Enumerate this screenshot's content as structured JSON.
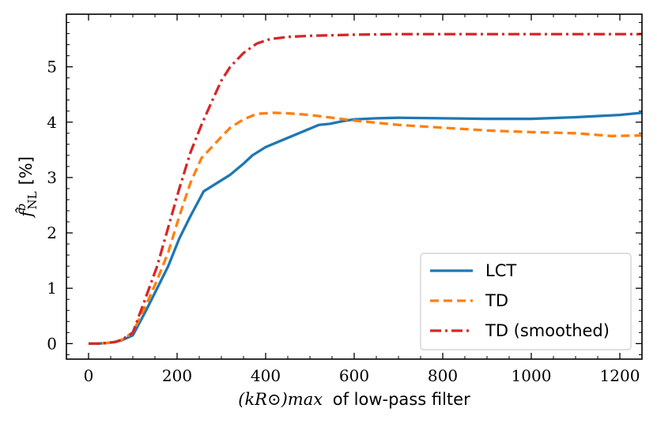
{
  "chart_data": {
    "type": "line",
    "title": "",
    "xlabel": "(kR⊙)max of low-pass filter",
    "xlabel_math": "(kR⊙)max",
    "xlabel_text": "of low-pass filter",
    "ylabel": "f̂ᵇNL [%]",
    "ylabel_math": "f̂",
    "ylabel_sup": "b",
    "ylabel_sub": "NL",
    "ylabel_unit": "[%]",
    "xlim": [
      -50,
      1250
    ],
    "ylim": [
      -0.28,
      5.95
    ],
    "xticks": [
      0,
      200,
      400,
      600,
      800,
      1000,
      1200
    ],
    "xtick_labels": [
      "0",
      "200",
      "400",
      "600",
      "800",
      "1000",
      "1200"
    ],
    "yticks": [
      0,
      1,
      2,
      3,
      4,
      5
    ],
    "ytick_labels": [
      "0",
      "1",
      "2",
      "3",
      "4",
      "5"
    ],
    "legend_position": "bottom-right",
    "series": [
      {
        "name": "LCT",
        "color": "#1f77b4",
        "style": "solid",
        "x": [
          0,
          20,
          40,
          60,
          75,
          100,
          130,
          155,
          180,
          205,
          230,
          260,
          290,
          320,
          350,
          370,
          400,
          430,
          460,
          490,
          520,
          545,
          575,
          600,
          650,
          700,
          800,
          900,
          1000,
          1100,
          1200,
          1250
        ],
        "y": [
          0,
          0,
          0.01,
          0.03,
          0.06,
          0.15,
          0.6,
          1.0,
          1.4,
          1.9,
          2.3,
          2.75,
          2.9,
          3.05,
          3.25,
          3.4,
          3.55,
          3.65,
          3.75,
          3.85,
          3.95,
          3.97,
          4.02,
          4.05,
          4.07,
          4.08,
          4.07,
          4.06,
          4.06,
          4.09,
          4.13,
          4.17
        ]
      },
      {
        "name": "TD",
        "color": "#ff7f0e",
        "style": "dashed",
        "x": [
          0,
          20,
          40,
          60,
          75,
          100,
          130,
          155,
          180,
          205,
          230,
          255,
          290,
          320,
          350,
          380,
          420,
          450,
          500,
          550,
          600,
          700,
          800,
          900,
          1000,
          1100,
          1180,
          1250
        ],
        "y": [
          0,
          0,
          0.01,
          0.03,
          0.07,
          0.2,
          0.7,
          1.15,
          1.65,
          2.3,
          2.9,
          3.35,
          3.65,
          3.9,
          4.05,
          4.15,
          4.17,
          4.16,
          4.13,
          4.08,
          4.03,
          3.95,
          3.9,
          3.85,
          3.82,
          3.8,
          3.75,
          3.76
        ]
      },
      {
        "name": "TD (smoothed)",
        "color": "#d62728",
        "style": "dashdot",
        "x": [
          0,
          20,
          40,
          60,
          75,
          100,
          130,
          155,
          180,
          205,
          230,
          255,
          280,
          300,
          320,
          350,
          380,
          410,
          450,
          500,
          600,
          700,
          800,
          900,
          1000,
          1100,
          1200,
          1250
        ],
        "y": [
          0,
          0,
          0.01,
          0.03,
          0.07,
          0.2,
          0.85,
          1.4,
          2.1,
          2.8,
          3.45,
          3.95,
          4.4,
          4.75,
          5.0,
          5.25,
          5.42,
          5.5,
          5.54,
          5.56,
          5.58,
          5.59,
          5.59,
          5.59,
          5.59,
          5.59,
          5.59,
          5.59
        ]
      }
    ]
  }
}
